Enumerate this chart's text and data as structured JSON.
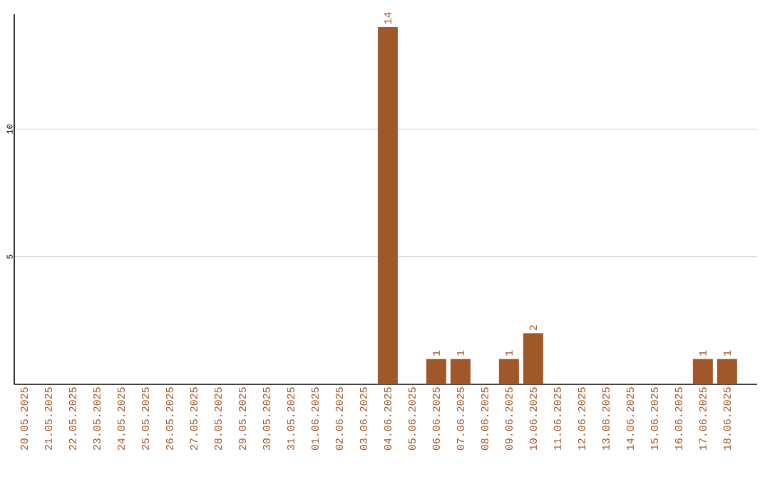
{
  "chart_data": {
    "type": "bar",
    "categories": [
      "20.05.2025",
      "21.05.2025",
      "22.05.2025",
      "23.05.2025",
      "24.05.2025",
      "25.05.2025",
      "26.05.2025",
      "27.05.2025",
      "28.05.2025",
      "29.05.2025",
      "30.05.2025",
      "31.05.2025",
      "01.06.2025",
      "02.06.2025",
      "03.06.2025",
      "04.06.2025",
      "05.06.2025",
      "06.06.2025",
      "07.06.2025",
      "08.06.2025",
      "09.06.2025",
      "10.06.2025",
      "11.06.2025",
      "12.06.2025",
      "13.06.2025",
      "14.06.2025",
      "15.06.2025",
      "16.06.2025",
      "17.06.2025",
      "18.06.2025"
    ],
    "values": [
      0,
      0,
      0,
      0,
      0,
      0,
      0,
      0,
      0,
      0,
      0,
      0,
      0,
      0,
      0,
      14,
      0,
      1,
      1,
      0,
      1,
      2,
      0,
      0,
      0,
      0,
      0,
      0,
      1,
      1
    ],
    "value_labels": [
      null,
      null,
      null,
      null,
      null,
      null,
      null,
      null,
      null,
      null,
      null,
      null,
      null,
      null,
      null,
      "14",
      null,
      "1",
      "1",
      null,
      "1",
      "2",
      null,
      null,
      null,
      null,
      null,
      null,
      "1",
      "1"
    ],
    "color": "#a0572a",
    "ylim": [
      0,
      14.5
    ],
    "yticks": [
      5,
      10
    ],
    "grid": "y"
  }
}
